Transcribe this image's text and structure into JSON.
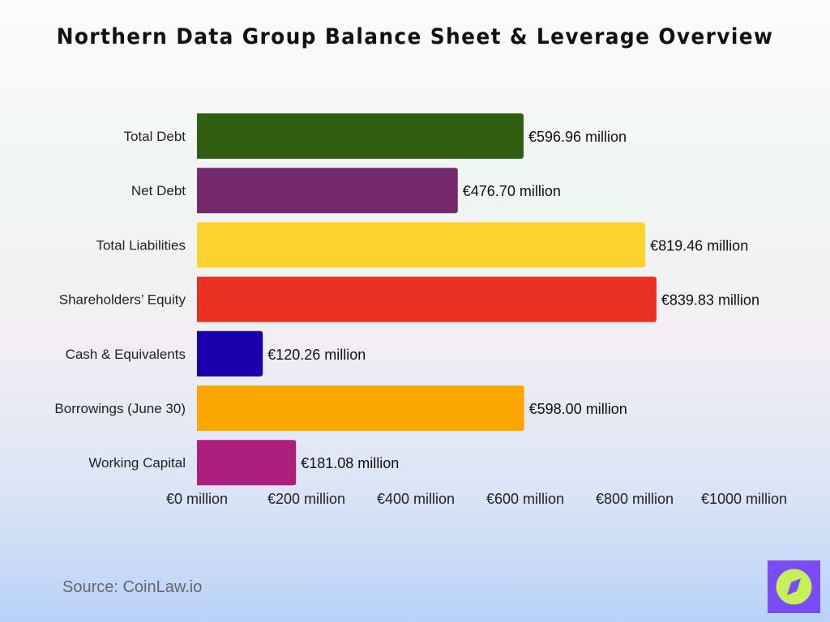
{
  "chart_data": {
    "type": "bar",
    "orientation": "horizontal",
    "title": "Northern Data Group Balance Sheet & Leverage Overview",
    "categories": [
      "Total Debt",
      "Net Debt",
      "Total Liabilities",
      "Shareholders’ Equity",
      "Cash & Equivalents",
      "Borrowings (June 30)",
      "Working Capital"
    ],
    "values": [
      596.96,
      476.7,
      819.46,
      839.83,
      120.26,
      598.0,
      181.08
    ],
    "data_labels": [
      "€596.96 million",
      "€476.70 million",
      "€819.46 million",
      "€839.83 million",
      "€120.26 million",
      "€598.00 million",
      "€181.08 million"
    ],
    "colors": [
      "#2f5e11",
      "#752a6e",
      "#fed330",
      "#e83122",
      "#1a00ad",
      "#fca600",
      "#ad1f7c"
    ],
    "xlim": [
      0,
      1000
    ],
    "xticks": [
      0,
      200,
      400,
      600,
      800,
      1000
    ],
    "xtick_labels": [
      "€0 million",
      "€200 million",
      "€400 million",
      "€600 million",
      "€800 million",
      "€1000 million"
    ],
    "grid": false,
    "xlabel": "",
    "ylabel": ""
  },
  "source": "Source: CoinLaw.io",
  "logo": {
    "name": "compass-logo",
    "colors": [
      "#7a4cf5",
      "#c7ef5a"
    ]
  }
}
